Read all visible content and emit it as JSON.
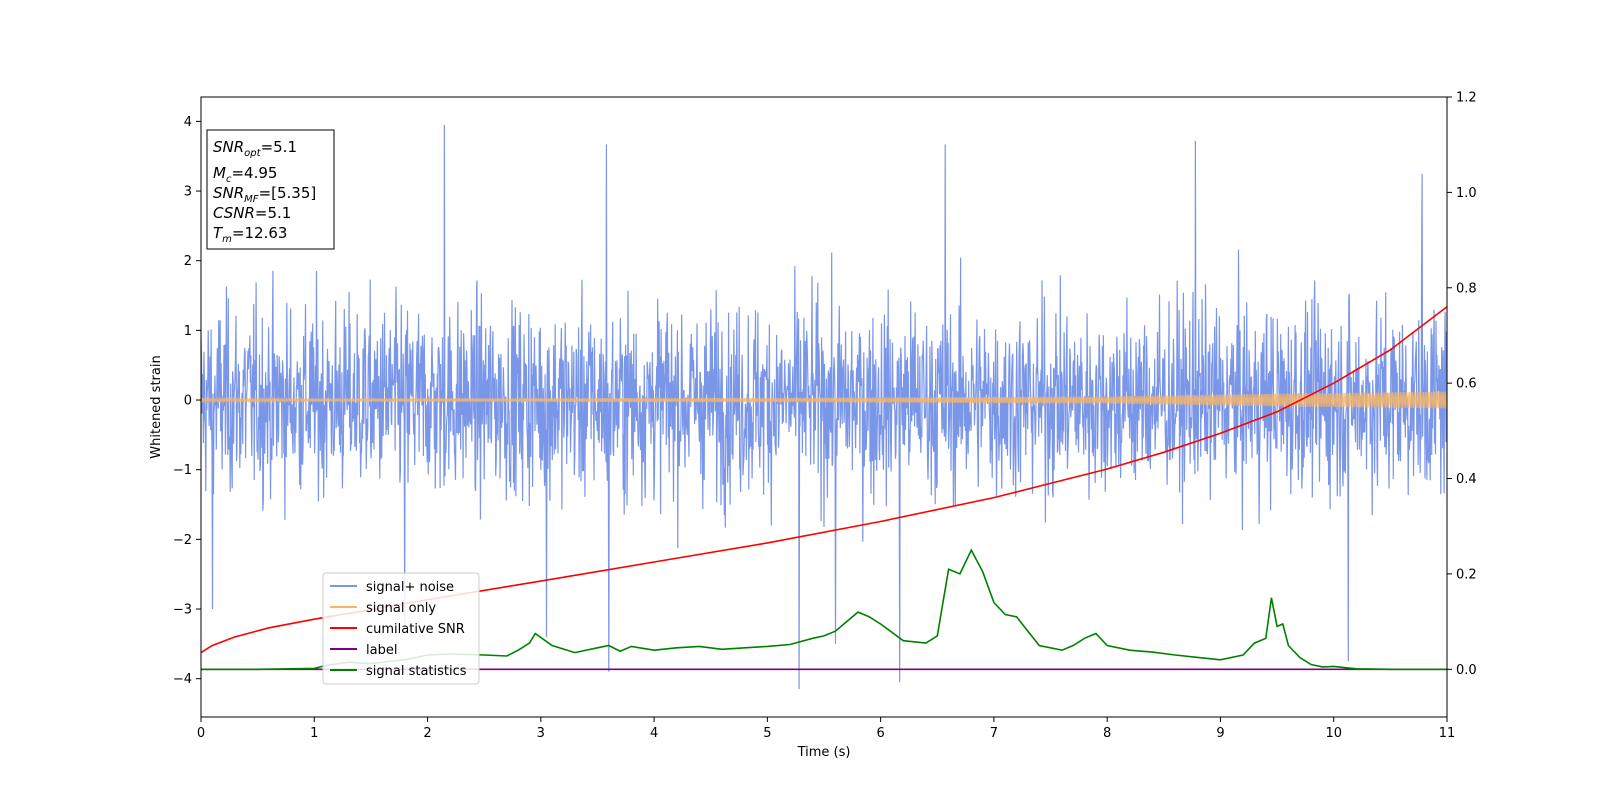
{
  "chart_data": {
    "type": "line",
    "xlabel": "Time (s)",
    "ylabel": "Whitened strain",
    "xlim": [
      0,
      11
    ],
    "ylim": [
      -4.55,
      4.35
    ],
    "y2lim": [
      -0.1,
      1.2
    ],
    "xticks": [
      "0",
      "1",
      "2",
      "3",
      "4",
      "5",
      "6",
      "7",
      "8",
      "9",
      "10",
      "11"
    ],
    "yticks": [
      "4",
      "3",
      "2",
      "1",
      "0",
      "−1",
      "−2",
      "−3",
      "−4"
    ],
    "y2ticks": [
      "1.2",
      "1.0",
      "0.8",
      "0.6",
      "0.4",
      "0.2",
      "0.0"
    ],
    "legend_position": "lower-left",
    "info_box": {
      "position": "top-left",
      "lines": [
        {
          "base": "SNR",
          "sub": "opt",
          "value": "=5.1"
        },
        {
          "base": "M",
          "sub": "c",
          "value": "=4.95"
        },
        {
          "base": "SNR",
          "sub": "MF",
          "value": "=[5.35]"
        },
        {
          "base": "CSNR",
          "sub": "",
          "value": "=5.1"
        },
        {
          "base": "T",
          "sub": "m",
          "value": "=12.63"
        }
      ]
    },
    "series": [
      {
        "name": "signal+ noise",
        "color": "#7a96e8",
        "axis": "left",
        "description_values": {
          "typical_range": [
            -2.6,
            2.6
          ],
          "max": 3.95,
          "min": -4.15
        },
        "spikes": [
          [
            2.15,
            3.95
          ],
          [
            3.58,
            3.67
          ],
          [
            6.57,
            3.67
          ],
          [
            8.78,
            3.72
          ],
          [
            10.78,
            3.25
          ],
          [
            5.28,
            -4.15
          ],
          [
            6.17,
            -4.05
          ],
          [
            3.6,
            -3.9
          ],
          [
            10.13,
            -3.75
          ],
          [
            0.1,
            -3.0
          ],
          [
            1.8,
            -3.2
          ],
          [
            3.05,
            -3.4
          ],
          [
            5.6,
            -3.5
          ]
        ]
      },
      {
        "name": "signal only",
        "color": "#f5b56b",
        "axis": "left",
        "amplitude_points": [
          [
            0,
            0.02
          ],
          [
            5,
            0.03
          ],
          [
            8,
            0.05
          ],
          [
            9.5,
            0.09
          ],
          [
            11,
            0.12
          ]
        ]
      },
      {
        "name": "cumilative SNR",
        "color": "#ff0000",
        "axis": "right",
        "x": [
          0,
          0.1,
          0.3,
          0.6,
          1,
          1.5,
          2,
          3,
          4,
          5,
          6,
          7,
          8,
          8.5,
          9,
          9.5,
          10,
          10.5,
          11
        ],
        "y": [
          0.035,
          0.05,
          0.068,
          0.087,
          0.105,
          0.125,
          0.146,
          0.185,
          0.225,
          0.265,
          0.31,
          0.36,
          0.42,
          0.455,
          0.495,
          0.54,
          0.6,
          0.67,
          0.76
        ]
      },
      {
        "name": "label",
        "color": "#800080",
        "axis": "right",
        "x": [
          0,
          11
        ],
        "y": [
          0,
          0
        ]
      },
      {
        "name": "signal statistics",
        "color": "#008000",
        "axis": "right",
        "x": [
          0,
          0.5,
          1,
          1.1,
          1.3,
          1.5,
          1.8,
          2.0,
          2.2,
          2.5,
          2.7,
          2.8,
          2.9,
          2.95,
          3.1,
          3.3,
          3.5,
          3.6,
          3.7,
          3.8,
          4.0,
          4.2,
          4.4,
          4.6,
          4.8,
          5.0,
          5.2,
          5.4,
          5.5,
          5.6,
          5.7,
          5.8,
          5.9,
          6.0,
          6.2,
          6.4,
          6.5,
          6.6,
          6.7,
          6.8,
          6.9,
          7.0,
          7.1,
          7.2,
          7.3,
          7.4,
          7.6,
          7.7,
          7.8,
          7.9,
          8.0,
          8.2,
          8.4,
          8.6,
          8.8,
          9.0,
          9.2,
          9.3,
          9.4,
          9.45,
          9.5,
          9.55,
          9.6,
          9.7,
          9.8,
          9.9,
          10.0,
          10.2,
          10.5,
          11
        ],
        "y": [
          0.0,
          0.0,
          0.002,
          0.008,
          0.015,
          0.012,
          0.02,
          0.03,
          0.032,
          0.03,
          0.028,
          0.04,
          0.055,
          0.075,
          0.05,
          0.035,
          0.045,
          0.05,
          0.038,
          0.048,
          0.04,
          0.045,
          0.048,
          0.042,
          0.045,
          0.048,
          0.052,
          0.065,
          0.07,
          0.08,
          0.1,
          0.12,
          0.11,
          0.095,
          0.06,
          0.055,
          0.07,
          0.21,
          0.2,
          0.25,
          0.205,
          0.14,
          0.115,
          0.11,
          0.08,
          0.05,
          0.04,
          0.05,
          0.065,
          0.075,
          0.05,
          0.04,
          0.036,
          0.03,
          0.025,
          0.02,
          0.03,
          0.055,
          0.065,
          0.15,
          0.09,
          0.095,
          0.05,
          0.025,
          0.01,
          0.005,
          0.006,
          0.001,
          0.0,
          0.0
        ]
      }
    ]
  }
}
